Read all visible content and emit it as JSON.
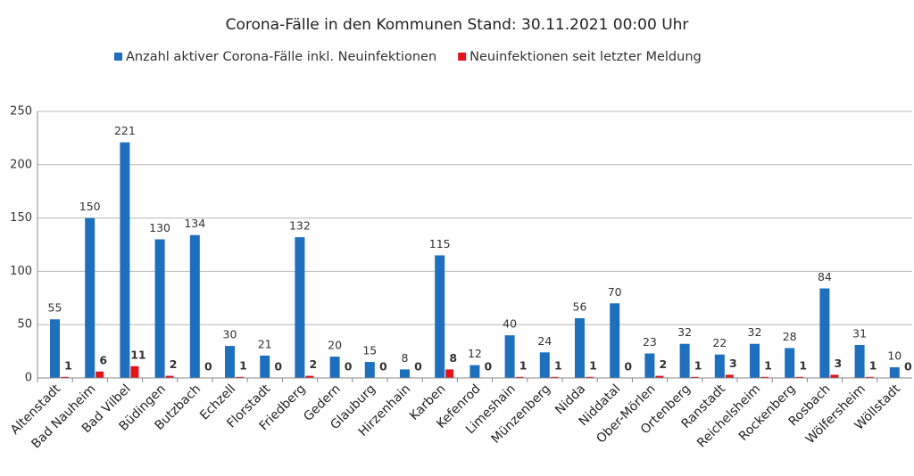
{
  "chart_data": {
    "type": "bar",
    "title": "Corona-Fälle in den Kommunen Stand: 30.11.2021 00:00 Uhr",
    "categories": [
      "Altenstadt",
      "Bad Nauheim",
      "Bad Vilbel",
      "Büdingen",
      "Butzbach",
      "Echzell",
      "Florstadt",
      "Friedberg",
      "Gedern",
      "Glauburg",
      "Hirzenhain",
      "Karben",
      "Kefenrod",
      "Limeshain",
      "Münzenberg",
      "Nidda",
      "Niddatal",
      "Ober-Mörlen",
      "Ortenberg",
      "Ranstadt",
      "Reichelsheim",
      "Rockenberg",
      "Rosbach",
      "Wölfersheim",
      "Wöllstadt"
    ],
    "series": [
      {
        "name": "Anzahl aktiver Corona-Fälle inkl. Neuinfektionen",
        "color": "#1f6fbf",
        "values": [
          55,
          150,
          221,
          130,
          134,
          30,
          21,
          132,
          20,
          15,
          8,
          115,
          12,
          40,
          24,
          56,
          70,
          23,
          32,
          22,
          32,
          28,
          84,
          31,
          10
        ]
      },
      {
        "name": "Neuinfektionen seit letzter Meldung",
        "color": "#e3131b",
        "values": [
          1,
          6,
          11,
          2,
          0,
          1,
          0,
          2,
          0,
          0,
          0,
          8,
          0,
          1,
          1,
          1,
          0,
          2,
          1,
          3,
          1,
          1,
          3,
          1,
          0
        ]
      }
    ],
    "ylim": [
      0,
      250
    ],
    "yticks": [
      0,
      50,
      100,
      150,
      200,
      250
    ],
    "grid": true,
    "legend": "top"
  }
}
